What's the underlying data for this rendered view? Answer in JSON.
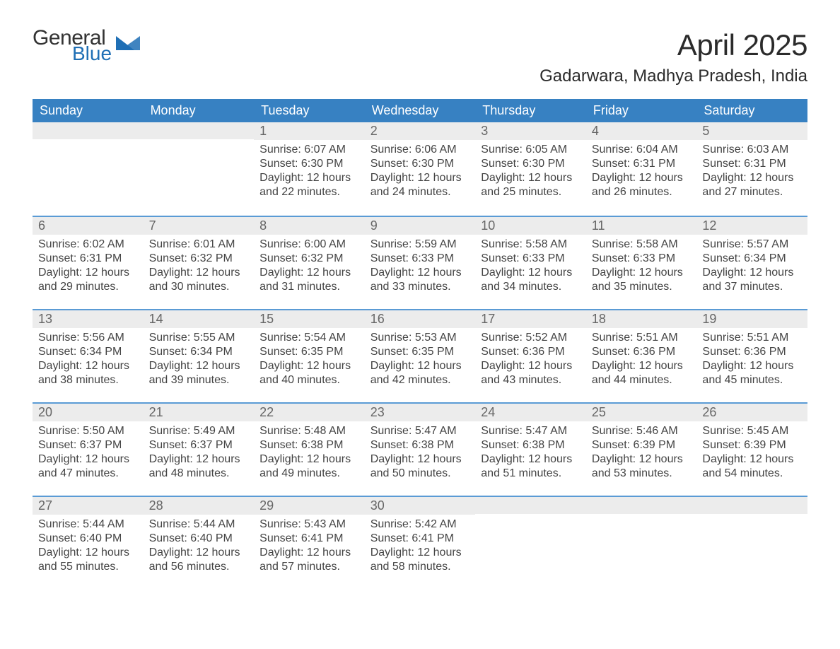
{
  "branding": {
    "word1": "General",
    "word2": "Blue",
    "logo_color": "#1f6fb5"
  },
  "title": "April 2025",
  "location": "Gadarwara, Madhya Pradesh, India",
  "colors": {
    "header_bg": "#3781c2",
    "row_separator": "#5a9bd5",
    "daynum_bg": "#ececec",
    "background": "#ffffff",
    "text": "#333333"
  },
  "typography": {
    "title_fontsize_pt": 32,
    "location_fontsize_pt": 18,
    "dow_fontsize_pt": 14,
    "body_fontsize_pt": 12,
    "font_family": "Segoe UI / Arial"
  },
  "layout": {
    "columns": 7,
    "rows": 5,
    "grid_type": "calendar"
  },
  "days_of_week": [
    "Sunday",
    "Monday",
    "Tuesday",
    "Wednesday",
    "Thursday",
    "Friday",
    "Saturday"
  ],
  "labels": {
    "sunrise_prefix": "Sunrise: ",
    "sunset_prefix": "Sunset: ",
    "daylight_prefix": "Daylight: ",
    "hours_word": "hours",
    "and_word": "and",
    "minutes_suffix": "minutes."
  },
  "weeks": [
    [
      {
        "blank": true
      },
      {
        "blank": true
      },
      {
        "num": "1",
        "sunrise": "6:07 AM",
        "sunset": "6:30 PM",
        "dl_h": 12,
        "dl_m": 22
      },
      {
        "num": "2",
        "sunrise": "6:06 AM",
        "sunset": "6:30 PM",
        "dl_h": 12,
        "dl_m": 24
      },
      {
        "num": "3",
        "sunrise": "6:05 AM",
        "sunset": "6:30 PM",
        "dl_h": 12,
        "dl_m": 25
      },
      {
        "num": "4",
        "sunrise": "6:04 AM",
        "sunset": "6:31 PM",
        "dl_h": 12,
        "dl_m": 26
      },
      {
        "num": "5",
        "sunrise": "6:03 AM",
        "sunset": "6:31 PM",
        "dl_h": 12,
        "dl_m": 27
      }
    ],
    [
      {
        "num": "6",
        "sunrise": "6:02 AM",
        "sunset": "6:31 PM",
        "dl_h": 12,
        "dl_m": 29
      },
      {
        "num": "7",
        "sunrise": "6:01 AM",
        "sunset": "6:32 PM",
        "dl_h": 12,
        "dl_m": 30
      },
      {
        "num": "8",
        "sunrise": "6:00 AM",
        "sunset": "6:32 PM",
        "dl_h": 12,
        "dl_m": 31
      },
      {
        "num": "9",
        "sunrise": "5:59 AM",
        "sunset": "6:33 PM",
        "dl_h": 12,
        "dl_m": 33
      },
      {
        "num": "10",
        "sunrise": "5:58 AM",
        "sunset": "6:33 PM",
        "dl_h": 12,
        "dl_m": 34
      },
      {
        "num": "11",
        "sunrise": "5:58 AM",
        "sunset": "6:33 PM",
        "dl_h": 12,
        "dl_m": 35
      },
      {
        "num": "12",
        "sunrise": "5:57 AM",
        "sunset": "6:34 PM",
        "dl_h": 12,
        "dl_m": 37
      }
    ],
    [
      {
        "num": "13",
        "sunrise": "5:56 AM",
        "sunset": "6:34 PM",
        "dl_h": 12,
        "dl_m": 38
      },
      {
        "num": "14",
        "sunrise": "5:55 AM",
        "sunset": "6:34 PM",
        "dl_h": 12,
        "dl_m": 39
      },
      {
        "num": "15",
        "sunrise": "5:54 AM",
        "sunset": "6:35 PM",
        "dl_h": 12,
        "dl_m": 40
      },
      {
        "num": "16",
        "sunrise": "5:53 AM",
        "sunset": "6:35 PM",
        "dl_h": 12,
        "dl_m": 42
      },
      {
        "num": "17",
        "sunrise": "5:52 AM",
        "sunset": "6:36 PM",
        "dl_h": 12,
        "dl_m": 43
      },
      {
        "num": "18",
        "sunrise": "5:51 AM",
        "sunset": "6:36 PM",
        "dl_h": 12,
        "dl_m": 44
      },
      {
        "num": "19",
        "sunrise": "5:51 AM",
        "sunset": "6:36 PM",
        "dl_h": 12,
        "dl_m": 45
      }
    ],
    [
      {
        "num": "20",
        "sunrise": "5:50 AM",
        "sunset": "6:37 PM",
        "dl_h": 12,
        "dl_m": 47
      },
      {
        "num": "21",
        "sunrise": "5:49 AM",
        "sunset": "6:37 PM",
        "dl_h": 12,
        "dl_m": 48
      },
      {
        "num": "22",
        "sunrise": "5:48 AM",
        "sunset": "6:38 PM",
        "dl_h": 12,
        "dl_m": 49
      },
      {
        "num": "23",
        "sunrise": "5:47 AM",
        "sunset": "6:38 PM",
        "dl_h": 12,
        "dl_m": 50
      },
      {
        "num": "24",
        "sunrise": "5:47 AM",
        "sunset": "6:38 PM",
        "dl_h": 12,
        "dl_m": 51
      },
      {
        "num": "25",
        "sunrise": "5:46 AM",
        "sunset": "6:39 PM",
        "dl_h": 12,
        "dl_m": 53
      },
      {
        "num": "26",
        "sunrise": "5:45 AM",
        "sunset": "6:39 PM",
        "dl_h": 12,
        "dl_m": 54
      }
    ],
    [
      {
        "num": "27",
        "sunrise": "5:44 AM",
        "sunset": "6:40 PM",
        "dl_h": 12,
        "dl_m": 55
      },
      {
        "num": "28",
        "sunrise": "5:44 AM",
        "sunset": "6:40 PM",
        "dl_h": 12,
        "dl_m": 56
      },
      {
        "num": "29",
        "sunrise": "5:43 AM",
        "sunset": "6:41 PM",
        "dl_h": 12,
        "dl_m": 57
      },
      {
        "num": "30",
        "sunrise": "5:42 AM",
        "sunset": "6:41 PM",
        "dl_h": 12,
        "dl_m": 58
      },
      {
        "blank": true
      },
      {
        "blank": true
      },
      {
        "blank": true
      }
    ]
  ]
}
